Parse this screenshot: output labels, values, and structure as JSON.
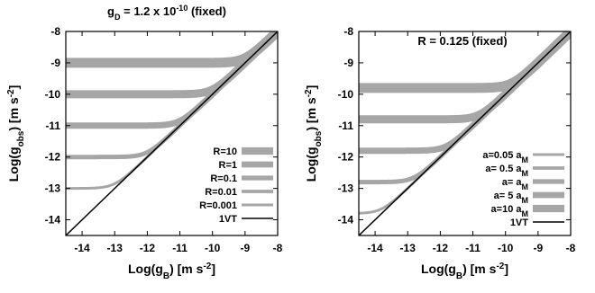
{
  "chart_data": [
    {
      "type": "line",
      "title": "g_D = 1.2 x 10^-10 (fixed)",
      "title_parts": {
        "sym": "g",
        "sub": "D",
        "eq": " = 1.2 x 10",
        "exp": "-10",
        "tail": " (fixed)"
      },
      "xlabel": "Log(g_B) [m s^-2]",
      "xlabel_parts": {
        "pre": "Log(g",
        "sub": "B",
        "post": ") [m s",
        "exp": "-2",
        "end": "]"
      },
      "ylabel": "Log(g_obs) [m s^-2]",
      "ylabel_parts": {
        "pre": "Log(g",
        "sub": "obs",
        "post": ") [m s",
        "exp": "-2",
        "end": "]"
      },
      "xlim": [
        -14.5,
        -8
      ],
      "ylim": [
        -14.5,
        -8
      ],
      "xticks": [
        "-14",
        "-13",
        "-12",
        "-11",
        "-10",
        "-9",
        "-8"
      ],
      "yticks": [
        "-8",
        "-9",
        "-10",
        "-11",
        "-12",
        "-13",
        "-14"
      ],
      "legend_position": "bottom-right",
      "series": [
        {
          "name": "R=10",
          "floor": -9.0,
          "width": 11,
          "color": "#a6a6a6"
        },
        {
          "name": "R=1",
          "floor": -10.0,
          "width": 9,
          "color": "#a6a6a6"
        },
        {
          "name": "R=0.1",
          "floor": -11.0,
          "width": 7,
          "color": "#a6a6a6"
        },
        {
          "name": "R=0.01",
          "floor": -12.0,
          "width": 5,
          "color": "#a6a6a6"
        },
        {
          "name": "R=0.001",
          "floor": -13.0,
          "width": 3,
          "color": "#a6a6a6"
        },
        {
          "name": "1VT",
          "one_to_one": true,
          "width": 1.5,
          "color": "#000000"
        }
      ]
    },
    {
      "type": "line",
      "title": "R = 0.125 (fixed)",
      "xlabel": "Log(g_B) [m s^-2]",
      "xlabel_parts": {
        "pre": "Log(g",
        "sub": "B",
        "post": ") [m s",
        "exp": "-2",
        "end": "]"
      },
      "ylabel": "Log(g_obs) [m s^-2]",
      "ylabel_parts": {
        "pre": "Log(g",
        "sub": "obs",
        "post": ") [m s",
        "exp": "-2",
        "end": "]"
      },
      "xlim": [
        -14.5,
        -8
      ],
      "ylim": [
        -14.5,
        -8
      ],
      "xticks": [
        "-14",
        "-13",
        "-12",
        "-11",
        "-10",
        "-9",
        "-8"
      ],
      "yticks": [
        "-8",
        "-9",
        "-10",
        "-11",
        "-12",
        "-13",
        "-14"
      ],
      "legend_position": "bottom-right",
      "series": [
        {
          "name": "a=0.05 a_M",
          "name_parts": {
            "pre": "a=0.05 a",
            "sub": "M"
          },
          "floor": -13.8,
          "width": 3,
          "color": "#a6a6a6"
        },
        {
          "name": "a= 0.5 a_M",
          "name_parts": {
            "pre": "a= 0.5 a",
            "sub": "M"
          },
          "floor": -12.8,
          "width": 5,
          "color": "#a6a6a6"
        },
        {
          "name": "a= a_M",
          "name_parts": {
            "pre": "a= a",
            "sub": "M"
          },
          "floor": -11.8,
          "width": 7,
          "color": "#a6a6a6"
        },
        {
          "name": "a= 5 a_M",
          "name_parts": {
            "pre": "a= 5 a",
            "sub": "M"
          },
          "floor": -10.8,
          "width": 9,
          "color": "#a6a6a6"
        },
        {
          "name": "a=10 a_M",
          "name_parts": {
            "pre": "a=10 a",
            "sub": "M"
          },
          "floor": -9.8,
          "width": 11,
          "color": "#a6a6a6"
        },
        {
          "name": "1VT",
          "one_to_one": true,
          "width": 1.5,
          "color": "#000000"
        }
      ]
    }
  ]
}
